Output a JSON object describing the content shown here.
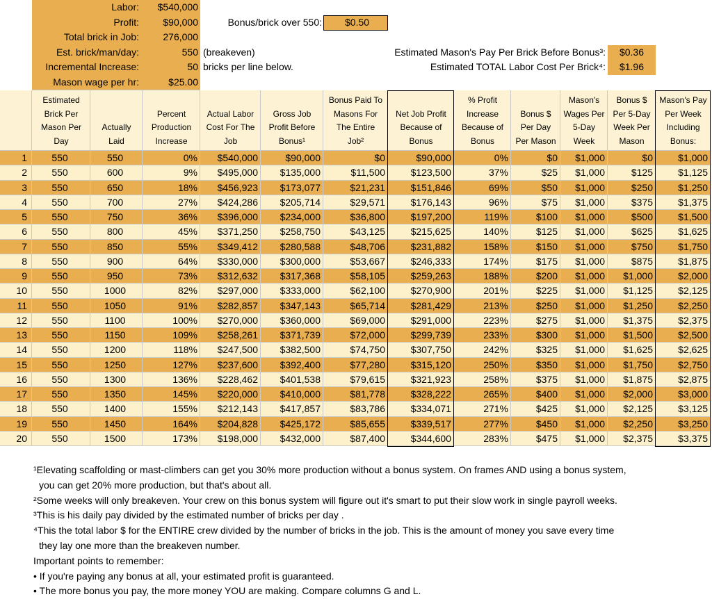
{
  "top": {
    "rows": [
      {
        "label": "Labor:",
        "value": "$540,000"
      },
      {
        "label": "Profit:",
        "value": "$90,000"
      },
      {
        "label": "Total brick in Job:",
        "value": "276,000"
      },
      {
        "label": "Est. brick/man/day:",
        "value": "550"
      },
      {
        "label": "Incremental Increase:",
        "value": "50"
      },
      {
        "label": "Mason wage per hr:",
        "value": "$25.00"
      }
    ],
    "breakeven_note": "(breakeven)",
    "increment_note": "bricks per line below.",
    "bonus_label": "Bonus/brick over 550:",
    "bonus_value": "$0.50",
    "pay_label": "Estimated Mason's Pay Per Brick Before Bonus³:",
    "pay_value": "$0.36",
    "labor_cost_label": "Estimated TOTAL Labor Cost Per Brick⁴:",
    "labor_cost_value": "$1.96"
  },
  "table": {
    "header": [
      [
        "Estimated",
        "Brick Per",
        "Mason Per",
        "Day"
      ],
      [
        "Actually",
        "Laid"
      ],
      [
        "Percent",
        "Production",
        "Increase"
      ],
      [
        "Actual Labor",
        "Cost For The",
        "Job"
      ],
      [
        "Gross Job",
        "Profit  Before",
        "Bonus¹"
      ],
      [
        "Bonus Paid To",
        "Masons For",
        "The Entire",
        "Job²"
      ],
      [
        "Net Job Profit",
        "Because of",
        "Bonus"
      ],
      [
        "% Profit",
        "Increase",
        "Because of",
        "Bonus"
      ],
      [
        "Bonus $",
        "Per Day",
        "Per Mason"
      ],
      [
        "Mason's",
        "Wages Per",
        "5-Day",
        "Week"
      ],
      [
        "Bonus $",
        "Per 5-Day",
        "Week Per",
        "Mason"
      ],
      [
        "Mason's Pay",
        "Per Week",
        "Including",
        "Bonus:"
      ]
    ],
    "rows": [
      [
        "1",
        "550",
        "550",
        "0%",
        "$540,000",
        "$90,000",
        "$0",
        "$90,000",
        "0%",
        "$0",
        "$1,000",
        "$0",
        "$1,000"
      ],
      [
        "2",
        "550",
        "600",
        "9%",
        "$495,000",
        "$135,000",
        "$11,500",
        "$123,500",
        "37%",
        "$25",
        "$1,000",
        "$125",
        "$1,125"
      ],
      [
        "3",
        "550",
        "650",
        "18%",
        "$456,923",
        "$173,077",
        "$21,231",
        "$151,846",
        "69%",
        "$50",
        "$1,000",
        "$250",
        "$1,250"
      ],
      [
        "4",
        "550",
        "700",
        "27%",
        "$424,286",
        "$205,714",
        "$29,571",
        "$176,143",
        "96%",
        "$75",
        "$1,000",
        "$375",
        "$1,375"
      ],
      [
        "5",
        "550",
        "750",
        "36%",
        "$396,000",
        "$234,000",
        "$36,800",
        "$197,200",
        "119%",
        "$100",
        "$1,000",
        "$500",
        "$1,500"
      ],
      [
        "6",
        "550",
        "800",
        "45%",
        "$371,250",
        "$258,750",
        "$43,125",
        "$215,625",
        "140%",
        "$125",
        "$1,000",
        "$625",
        "$1,625"
      ],
      [
        "7",
        "550",
        "850",
        "55%",
        "$349,412",
        "$280,588",
        "$48,706",
        "$231,882",
        "158%",
        "$150",
        "$1,000",
        "$750",
        "$1,750"
      ],
      [
        "8",
        "550",
        "900",
        "64%",
        "$330,000",
        "$300,000",
        "$53,667",
        "$246,333",
        "174%",
        "$175",
        "$1,000",
        "$875",
        "$1,875"
      ],
      [
        "9",
        "550",
        "950",
        "73%",
        "$312,632",
        "$317,368",
        "$58,105",
        "$259,263",
        "188%",
        "$200",
        "$1,000",
        "$1,000",
        "$2,000"
      ],
      [
        "10",
        "550",
        "1000",
        "82%",
        "$297,000",
        "$333,000",
        "$62,100",
        "$270,900",
        "201%",
        "$225",
        "$1,000",
        "$1,125",
        "$2,125"
      ],
      [
        "11",
        "550",
        "1050",
        "91%",
        "$282,857",
        "$347,143",
        "$65,714",
        "$281,429",
        "213%",
        "$250",
        "$1,000",
        "$1,250",
        "$2,250"
      ],
      [
        "12",
        "550",
        "1100",
        "100%",
        "$270,000",
        "$360,000",
        "$69,000",
        "$291,000",
        "223%",
        "$275",
        "$1,000",
        "$1,375",
        "$2,375"
      ],
      [
        "13",
        "550",
        "1150",
        "109%",
        "$258,261",
        "$371,739",
        "$72,000",
        "$299,739",
        "233%",
        "$300",
        "$1,000",
        "$1,500",
        "$2,500"
      ],
      [
        "14",
        "550",
        "1200",
        "118%",
        "$247,500",
        "$382,500",
        "$74,750",
        "$307,750",
        "242%",
        "$325",
        "$1,000",
        "$1,625",
        "$2,625"
      ],
      [
        "15",
        "550",
        "1250",
        "127%",
        "$237,600",
        "$392,400",
        "$77,280",
        "$315,120",
        "250%",
        "$350",
        "$1,000",
        "$1,750",
        "$2,750"
      ],
      [
        "16",
        "550",
        "1300",
        "136%",
        "$228,462",
        "$401,538",
        "$79,615",
        "$321,923",
        "258%",
        "$375",
        "$1,000",
        "$1,875",
        "$2,875"
      ],
      [
        "17",
        "550",
        "1350",
        "145%",
        "$220,000",
        "$410,000",
        "$81,778",
        "$328,222",
        "265%",
        "$400",
        "$1,000",
        "$2,000",
        "$3,000"
      ],
      [
        "18",
        "550",
        "1400",
        "155%",
        "$212,143",
        "$417,857",
        "$83,786",
        "$334,071",
        "271%",
        "$425",
        "$1,000",
        "$2,125",
        "$3,125"
      ],
      [
        "19",
        "550",
        "1450",
        "164%",
        "$204,828",
        "$425,172",
        "$85,655",
        "$339,517",
        "277%",
        "$450",
        "$1,000",
        "$2,250",
        "$3,250"
      ],
      [
        "20",
        "550",
        "1500",
        "173%",
        "$198,000",
        "$432,000",
        "$87,400",
        "$344,600",
        "283%",
        "$475",
        "$1,000",
        "$2,375",
        "$3,375"
      ]
    ]
  },
  "notes": [
    {
      "text": "¹Elevating scaffolding or mast-climbers can get you 30% more production without a bonus system. On frames AND using a bonus system,",
      "indent": false
    },
    {
      "text": "you can get 20% more production, but that's about all.",
      "indent": true
    },
    {
      "text": "²Some weeks will only breakeven. Your crew on this bonus system will figure out it's smart to put their slow work in single payroll weeks.",
      "indent": false
    },
    {
      "text": "³This is his daily pay divided by the estimated number of bricks per day .",
      "indent": false
    },
    {
      "text": "⁴This the total labor $ for the ENTIRE crew divided by the number of bricks in the job. This is the amount of money you save every time",
      "indent": false
    },
    {
      "text": "they lay one more than the breakeven number.",
      "indent": true
    },
    {
      "text": "Important points to remember:",
      "indent": false
    },
    {
      "text": "• If you're paying any bonus at all, your estimated profit is guaranteed.",
      "indent": false
    },
    {
      "text": "• The more bonus you pay, the more money YOU are making. Compare columns G and L.",
      "indent": false
    }
  ]
}
